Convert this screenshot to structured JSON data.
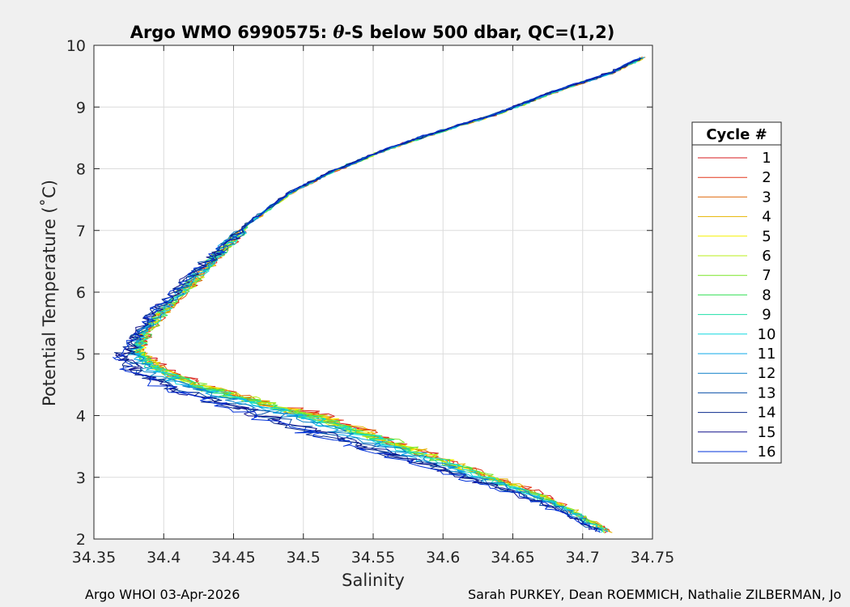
{
  "figure": {
    "footer_left": "Argo WHOI 03-Apr-2026",
    "footer_right": "Sarah PURKEY, Dean ROEMMICH, Nathalie ZILBERMAN, Jo"
  },
  "chart_data": {
    "type": "line",
    "title_prefix": "Argo WMO 6990575: ",
    "title_theta": "θ",
    "title_suffix": "-S below 500 dbar,  QC=(1,2)",
    "xlabel": "Salinity",
    "ylabel": "Potential Temperature (˚C)",
    "xlim": [
      34.35,
      34.75
    ],
    "ylim": [
      2,
      10
    ],
    "xticks": [
      "34.35",
      "34.4",
      "34.45",
      "34.5",
      "34.55",
      "34.6",
      "34.65",
      "34.7",
      "34.75"
    ],
    "yticks": [
      "2",
      "3",
      "4",
      "5",
      "6",
      "7",
      "8",
      "9",
      "10"
    ],
    "grid": true,
    "legend": {
      "title": "Cycle #",
      "placement": "right"
    },
    "series": [
      {
        "name": "1",
        "color": "#d7191c",
        "offset": 0.013
      },
      {
        "name": "2",
        "color": "#e3351a",
        "offset": 0.011
      },
      {
        "name": "3",
        "color": "#e06d10",
        "offset": 0.01
      },
      {
        "name": "4",
        "color": "#e6b400",
        "offset": 0.011
      },
      {
        "name": "5",
        "color": "#f5f000",
        "offset": 0.009
      },
      {
        "name": "6",
        "color": "#b8ef18",
        "offset": 0.008
      },
      {
        "name": "7",
        "color": "#7ce628",
        "offset": 0.009
      },
      {
        "name": "8",
        "color": "#38e05a",
        "offset": 0.007
      },
      {
        "name": "9",
        "color": "#1fe0a8",
        "offset": 0.006
      },
      {
        "name": "10",
        "color": "#12d8e0",
        "offset": 0.004
      },
      {
        "name": "11",
        "color": "#0ea8e8",
        "offset": 0.0
      },
      {
        "name": "12",
        "color": "#0a7fc8",
        "offset": -0.002
      },
      {
        "name": "13",
        "color": "#0a4fa8",
        "offset": -0.012
      },
      {
        "name": "14",
        "color": "#0a2a8c",
        "offset": -0.016
      },
      {
        "name": "15",
        "color": "#10108c",
        "offset": -0.014
      },
      {
        "name": "16",
        "color": "#0030d8",
        "offset": -0.018
      }
    ],
    "base_profile": {
      "upper_branch": [
        [
          34.743,
          9.8
        ],
        [
          34.72,
          9.55
        ],
        [
          34.68,
          9.25
        ],
        [
          34.64,
          8.9
        ],
        [
          34.6,
          8.62
        ],
        [
          34.56,
          8.32
        ],
        [
          34.52,
          7.95
        ],
        [
          34.49,
          7.6
        ],
        [
          34.46,
          7.1
        ],
        [
          34.44,
          6.65
        ],
        [
          34.42,
          6.2
        ],
        [
          34.4,
          5.75
        ],
        [
          34.385,
          5.35
        ],
        [
          34.378,
          5.0
        ]
      ],
      "lower_branch": [
        [
          34.378,
          5.0
        ],
        [
          34.39,
          4.75
        ],
        [
          34.42,
          4.45
        ],
        [
          34.46,
          4.2
        ],
        [
          34.5,
          3.95
        ],
        [
          34.54,
          3.65
        ],
        [
          34.58,
          3.35
        ],
        [
          34.62,
          3.05
        ],
        [
          34.66,
          2.75
        ],
        [
          34.69,
          2.45
        ],
        [
          34.715,
          2.12
        ]
      ]
    }
  }
}
